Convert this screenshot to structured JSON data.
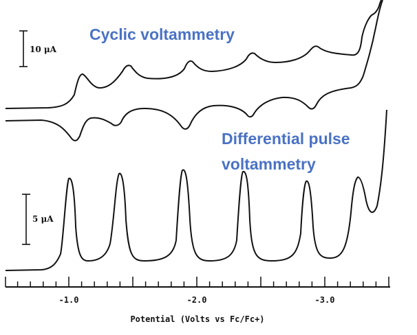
{
  "chart_data": [
    {
      "type": "line",
      "title": "Cyclic voltammetry",
      "scale_bar": "10 μA",
      "xlabel": "Potential (Volts vs Fc/Fc+)",
      "xlim": [
        -0.5,
        -3.55
      ],
      "x_ticks": [
        "-1.0",
        "-2.0",
        "-3.0"
      ],
      "peak_potentials": [
        -1.1,
        -1.5,
        -2.0,
        -2.45,
        -2.95,
        -3.35
      ]
    },
    {
      "type": "line",
      "title": "Differential pulse voltammetry",
      "title_lines": [
        "Differential pulse",
        "voltammetry"
      ],
      "scale_bar": "5 μA",
      "xlabel": "Potential (Volts vs Fc/Fc+)",
      "xlim": [
        -0.5,
        -3.55
      ],
      "peak_potentials": [
        -1.0,
        -1.4,
        -1.9,
        -2.35,
        -2.85,
        -3.25
      ]
    }
  ]
}
